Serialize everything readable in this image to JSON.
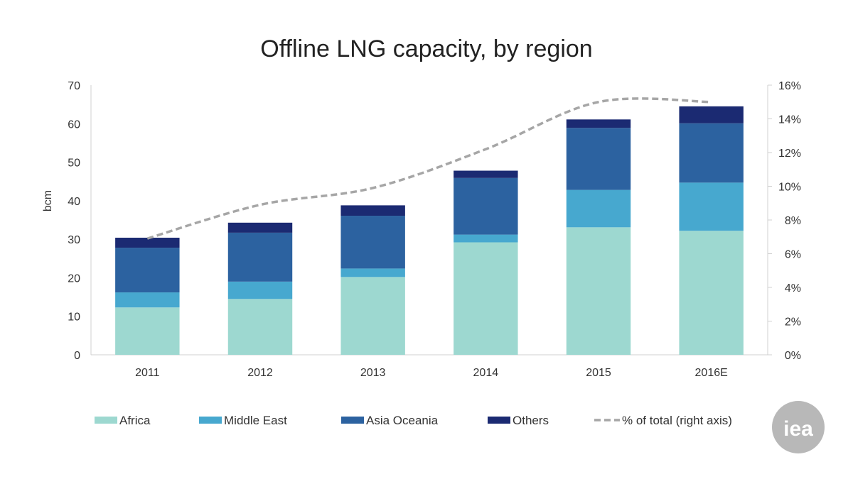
{
  "chart_data": {
    "type": "bar",
    "title": "Offline LNG capacity, by region",
    "ylabel": "bcm",
    "y2label": "",
    "categories": [
      "2011",
      "2012",
      "2013",
      "2014",
      "2015",
      "2016E"
    ],
    "series": [
      {
        "name": "Africa",
        "color": "#9dd8d0",
        "values": [
          12.3,
          14.5,
          20.2,
          29.2,
          33.1,
          32.2
        ]
      },
      {
        "name": "Middle East",
        "color": "#47a8cf",
        "values": [
          3.9,
          4.5,
          2.2,
          2.0,
          9.7,
          12.5
        ]
      },
      {
        "name": "Asia Oceania",
        "color": "#2c62a0",
        "values": [
          11.6,
          12.7,
          13.7,
          14.7,
          16.1,
          15.4
        ]
      },
      {
        "name": "Others",
        "color": "#1b2a72",
        "values": [
          2.6,
          2.6,
          2.7,
          1.9,
          2.2,
          4.4
        ]
      }
    ],
    "line": {
      "name": "% of total (right axis)",
      "color": "#a6a6a6",
      "axis": "right",
      "values": [
        0.069,
        0.089,
        0.099,
        0.122,
        0.15,
        0.15
      ]
    },
    "ylim": [
      0,
      70
    ],
    "yticks": [
      "0",
      "10",
      "20",
      "30",
      "40",
      "50",
      "60",
      "70"
    ],
    "y2lim": [
      0,
      0.16
    ],
    "y2ticks": [
      "0%",
      "2%",
      "4%",
      "6%",
      "8%",
      "10%",
      "12%",
      "14%",
      "16%"
    ],
    "legend_position": "bottom"
  },
  "logo": {
    "text": "iea",
    "color": "#b8b8b8"
  }
}
